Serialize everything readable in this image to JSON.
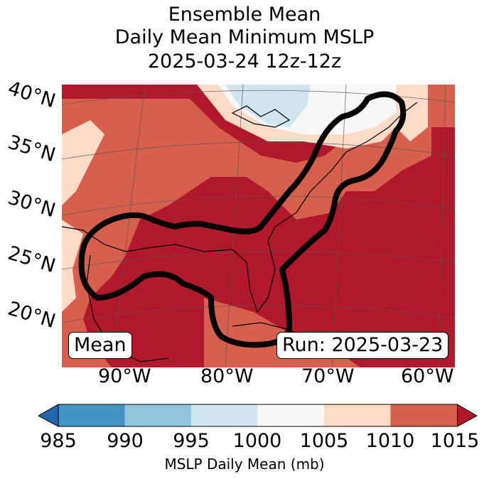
{
  "title": {
    "line1": "Ensemble Mean",
    "line2": "Daily Mean Minimum MSLP",
    "line3": "2025-03-24 12z-12z"
  },
  "map": {
    "lat_labels": [
      "40°N",
      "35°N",
      "30°N",
      "25°N",
      "20°N"
    ],
    "lon_labels": [
      "90°W",
      "80°W",
      "70°W",
      "60°W"
    ],
    "region_colors": {
      "c985": "#2166ac",
      "c990": "#4393c3",
      "c995": "#92c5de",
      "c1000": "#d1e5f0",
      "c1005": "#f7f7f7",
      "c1010": "#fddbc7",
      "c1015": "#d6604d",
      "c_over": "#b2182b"
    },
    "contour_color": "#000000",
    "left_box": "Mean",
    "right_box": "Run: 2025-03-23"
  },
  "colorbar": {
    "ticks": [
      "985",
      "990",
      "995",
      "1000",
      "1005",
      "1010",
      "1015"
    ],
    "colors": [
      "#2166ac",
      "#4393c3",
      "#92c5de",
      "#d1e5f0",
      "#f7f7f7",
      "#fddbc7",
      "#d6604d",
      "#b2182b"
    ],
    "label": "MSLP Daily Mean (mb)"
  }
}
